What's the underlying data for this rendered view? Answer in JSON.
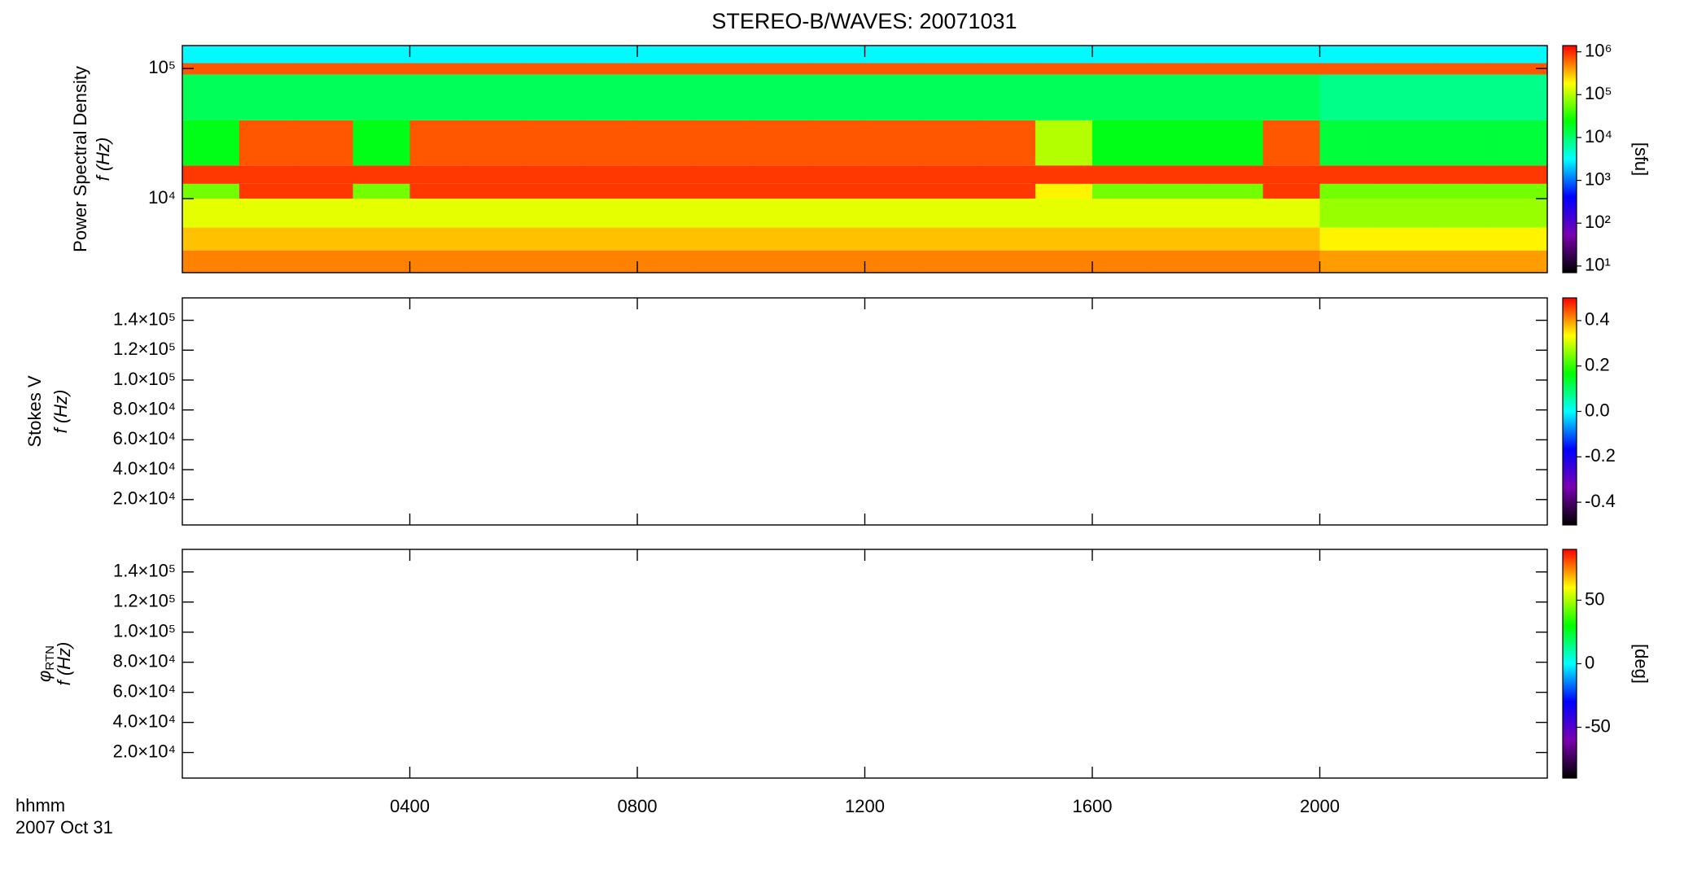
{
  "title": "STEREO-B/WAVES: 20071031",
  "time_label": "hhmm",
  "date_label": "2007 Oct 31",
  "time_axis": {
    "xlim": [
      0,
      24
    ],
    "xticks": [
      {
        "value": 4,
        "label": "0400"
      },
      {
        "value": 8,
        "label": "0800"
      },
      {
        "value": 12,
        "label": "1200"
      },
      {
        "value": 16,
        "label": "1600"
      },
      {
        "value": 20,
        "label": "2000"
      }
    ]
  },
  "colormap": [
    "#000000",
    "#7a00b0",
    "#0000ff",
    "#00ffff",
    "#00ff00",
    "#ffff00",
    "#ff0000"
  ],
  "chart_data": [
    {
      "type": "heatmap",
      "ylabel": "Power Spectral Density",
      "ylabel2": "f (Hz)",
      "log_y": true,
      "ylim": [
        2700,
        150000
      ],
      "yticks": [
        {
          "value": 10000,
          "label": "10⁴"
        },
        {
          "value": 100000,
          "label": "10⁵"
        }
      ],
      "colorbar": {
        "label": "[sfu]",
        "log": true,
        "lim": [
          7,
          1400000
        ],
        "ticks": [
          {
            "value": 10,
            "label": "10¹"
          },
          {
            "value": 100,
            "label": "10²"
          },
          {
            "value": 1000,
            "label": "10³"
          },
          {
            "value": 10000,
            "label": "10⁴"
          },
          {
            "value": 100000,
            "label": "10⁵"
          },
          {
            "value": 1000000,
            "label": "10⁶"
          }
        ]
      },
      "x_edges": [
        0,
        1,
        2,
        3,
        4,
        5,
        6,
        7,
        8,
        9,
        10,
        11,
        12,
        13,
        14,
        15,
        16,
        17,
        18,
        19,
        20,
        21,
        22,
        23,
        24
      ],
      "y_edges": [
        2700,
        4000,
        6000,
        10000,
        13000,
        18000,
        40000,
        90000,
        110000,
        150000
      ],
      "z": [
        [
          500000,
          500000,
          500000,
          500000,
          500000,
          500000,
          500000,
          500000,
          500000,
          500000,
          500000,
          500000,
          500000,
          500000,
          500000,
          500000,
          500000,
          500000,
          500000,
          500000,
          400000,
          400000,
          400000,
          400000
        ],
        [
          300000,
          300000,
          300000,
          300000,
          300000,
          300000,
          300000,
          300000,
          300000,
          300000,
          300000,
          300000,
          300000,
          300000,
          300000,
          300000,
          300000,
          300000,
          300000,
          300000,
          200000,
          200000,
          200000,
          200000
        ],
        [
          150000,
          150000,
          150000,
          150000,
          150000,
          150000,
          150000,
          150000,
          150000,
          150000,
          150000,
          150000,
          150000,
          150000,
          150000,
          150000,
          150000,
          150000,
          150000,
          150000,
          80000,
          80000,
          80000,
          80000
        ],
        [
          60000,
          900000,
          900000,
          60000,
          900000,
          900000,
          900000,
          900000,
          900000,
          900000,
          900000,
          900000,
          900000,
          900000,
          900000,
          200000,
          60000,
          60000,
          60000,
          900000,
          60000,
          60000,
          60000,
          60000
        ],
        [
          900000,
          900000,
          900000,
          900000,
          900000,
          900000,
          900000,
          900000,
          900000,
          900000,
          900000,
          900000,
          900000,
          900000,
          900000,
          900000,
          900000,
          900000,
          900000,
          900000,
          900000,
          900000,
          900000,
          900000
        ],
        [
          20000,
          700000,
          700000,
          20000,
          700000,
          700000,
          700000,
          700000,
          700000,
          700000,
          700000,
          700000,
          700000,
          700000,
          700000,
          100000,
          20000,
          20000,
          20000,
          700000,
          15000,
          15000,
          15000,
          15000
        ],
        [
          12000,
          12000,
          12000,
          12000,
          12000,
          12000,
          12000,
          12000,
          12000,
          12000,
          12000,
          12000,
          12000,
          12000,
          12000,
          12000,
          12000,
          12000,
          12000,
          12000,
          8000,
          8000,
          8000,
          8000
        ],
        [
          700000,
          700000,
          700000,
          700000,
          700000,
          700000,
          700000,
          700000,
          700000,
          700000,
          700000,
          700000,
          700000,
          700000,
          700000,
          700000,
          700000,
          700000,
          700000,
          700000,
          700000,
          700000,
          700000,
          700000
        ],
        [
          3000,
          3000,
          3000,
          3000,
          3000,
          3000,
          3000,
          3000,
          3000,
          3000,
          3000,
          3000,
          3000,
          3000,
          3000,
          3000,
          3000,
          3000,
          3000,
          3000,
          3000,
          3000,
          3000,
          3000
        ]
      ]
    },
    {
      "type": "heatmap",
      "ylabel": "Stokes V",
      "ylabel2": "f (Hz)",
      "log_y": false,
      "ylim": [
        3000,
        155000
      ],
      "yticks": [
        {
          "value": 20000,
          "label": "2.0×10⁴"
        },
        {
          "value": 40000,
          "label": "4.0×10⁴"
        },
        {
          "value": 60000,
          "label": "6.0×10⁴"
        },
        {
          "value": 80000,
          "label": "8.0×10⁴"
        },
        {
          "value": 100000,
          "label": "1.0×10⁵"
        },
        {
          "value": 120000,
          "label": "1.2×10⁵"
        },
        {
          "value": 140000,
          "label": "1.4×10⁵"
        }
      ],
      "colorbar": {
        "log": false,
        "lim": [
          -0.5,
          0.5
        ],
        "ticks": [
          -0.4,
          -0.2,
          {
            "value": 0,
            "label": "0.0"
          },
          0.2,
          0.4
        ]
      }
    },
    {
      "type": "heatmap",
      "ylabel": "φ",
      "ylabel_sub": "RTN",
      "ylabel2": "f (Hz)",
      "log_y": false,
      "ylim": [
        3000,
        155000
      ],
      "yticks": [
        {
          "value": 20000,
          "label": "2.0×10⁴"
        },
        {
          "value": 40000,
          "label": "4.0×10⁴"
        },
        {
          "value": 60000,
          "label": "6.0×10⁴"
        },
        {
          "value": 80000,
          "label": "8.0×10⁴"
        },
        {
          "value": 100000,
          "label": "1.0×10⁵"
        },
        {
          "value": 120000,
          "label": "1.2×10⁵"
        },
        {
          "value": 140000,
          "label": "1.4×10⁵"
        }
      ],
      "colorbar": {
        "label": "[deg]",
        "log": false,
        "lim": [
          -90,
          90
        ],
        "ticks": [
          -50,
          0,
          50
        ]
      }
    }
  ]
}
